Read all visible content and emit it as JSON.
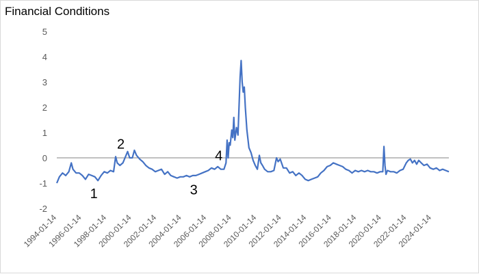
{
  "chart_data": {
    "type": "line",
    "title": "Financial Conditions",
    "xlabel": "",
    "ylabel": "",
    "ylim": [
      -2,
      5
    ],
    "y_ticks": [
      "5",
      "4",
      "3",
      "2",
      "1",
      "0",
      "-1",
      "-2"
    ],
    "x_tick_labels": [
      "1994-01-14",
      "1996-01-14",
      "1998-01-14",
      "2000-01-14",
      "2002-01-14",
      "2004-01-14",
      "2006-01-14",
      "2008-01-14",
      "2010-01-14",
      "2012-01-14",
      "2014-01-14",
      "2016-01-14",
      "2018-01-14",
      "2020-01-14",
      "2022-01-14",
      "2024-01-14"
    ],
    "series": [
      {
        "color": "#4472C4",
        "points": [
          [
            "1994-01-14",
            -1.0
          ],
          [
            "1994-04-01",
            -0.75
          ],
          [
            "1994-07-01",
            -0.6
          ],
          [
            "1994-10-01",
            -0.7
          ],
          [
            "1995-01-01",
            -0.55
          ],
          [
            "1995-03-15",
            -0.2
          ],
          [
            "1995-05-01",
            -0.45
          ],
          [
            "1995-08-01",
            -0.6
          ],
          [
            "1995-11-01",
            -0.6
          ],
          [
            "1996-02-01",
            -0.7
          ],
          [
            "1996-05-01",
            -0.85
          ],
          [
            "1996-08-01",
            -0.65
          ],
          [
            "1996-11-01",
            -0.7
          ],
          [
            "1997-02-01",
            -0.75
          ],
          [
            "1997-05-01",
            -0.9
          ],
          [
            "1997-08-01",
            -0.7
          ],
          [
            "1997-11-01",
            -0.55
          ],
          [
            "1998-02-01",
            -0.6
          ],
          [
            "1998-05-01",
            -0.5
          ],
          [
            "1998-08-01",
            -0.55
          ],
          [
            "1998-10-01",
            0.05
          ],
          [
            "1998-11-15",
            -0.2
          ],
          [
            "1999-02-01",
            -0.3
          ],
          [
            "1999-05-01",
            -0.2
          ],
          [
            "1999-08-01",
            0.1
          ],
          [
            "1999-09-15",
            0.25
          ],
          [
            "1999-11-15",
            0.0
          ],
          [
            "2000-02-01",
            0.0
          ],
          [
            "2000-04-01",
            0.3
          ],
          [
            "2000-06-01",
            0.1
          ],
          [
            "2000-09-01",
            -0.05
          ],
          [
            "2000-12-01",
            -0.15
          ],
          [
            "2001-03-01",
            -0.3
          ],
          [
            "2001-06-01",
            -0.4
          ],
          [
            "2001-09-01",
            -0.45
          ],
          [
            "2001-12-01",
            -0.55
          ],
          [
            "2002-03-01",
            -0.5
          ],
          [
            "2002-06-01",
            -0.45
          ],
          [
            "2002-09-01",
            -0.65
          ],
          [
            "2002-12-01",
            -0.55
          ],
          [
            "2003-03-01",
            -0.7
          ],
          [
            "2003-06-01",
            -0.75
          ],
          [
            "2003-09-01",
            -0.8
          ],
          [
            "2003-12-01",
            -0.75
          ],
          [
            "2004-03-01",
            -0.75
          ],
          [
            "2004-06-01",
            -0.7
          ],
          [
            "2004-09-01",
            -0.75
          ],
          [
            "2004-12-01",
            -0.7
          ],
          [
            "2005-03-01",
            -0.7
          ],
          [
            "2005-06-01",
            -0.65
          ],
          [
            "2005-09-01",
            -0.6
          ],
          [
            "2005-12-01",
            -0.55
          ],
          [
            "2006-03-01",
            -0.5
          ],
          [
            "2006-06-01",
            -0.4
          ],
          [
            "2006-09-01",
            -0.45
          ],
          [
            "2006-12-01",
            -0.35
          ],
          [
            "2007-03-01",
            -0.45
          ],
          [
            "2007-06-01",
            -0.45
          ],
          [
            "2007-08-01",
            -0.2
          ],
          [
            "2007-09-01",
            0.7
          ],
          [
            "2007-10-01",
            0.0
          ],
          [
            "2007-11-01",
            0.6
          ],
          [
            "2007-12-01",
            0.5
          ],
          [
            "2008-01-15",
            1.1
          ],
          [
            "2008-02-15",
            0.8
          ],
          [
            "2008-03-15",
            1.6
          ],
          [
            "2008-04-15",
            0.7
          ],
          [
            "2008-06-01",
            1.2
          ],
          [
            "2008-07-15",
            0.9
          ],
          [
            "2008-09-15",
            3.2
          ],
          [
            "2008-10-15",
            3.85
          ],
          [
            "2008-11-15",
            3.0
          ],
          [
            "2008-12-15",
            2.6
          ],
          [
            "2009-01-15",
            2.8
          ],
          [
            "2009-02-15",
            2.0
          ],
          [
            "2009-04-01",
            1.1
          ],
          [
            "2009-06-01",
            0.4
          ],
          [
            "2009-08-01",
            0.2
          ],
          [
            "2009-10-01",
            -0.1
          ],
          [
            "2009-12-01",
            -0.3
          ],
          [
            "2010-02-01",
            -0.45
          ],
          [
            "2010-04-01",
            0.1
          ],
          [
            "2010-05-15",
            -0.2
          ],
          [
            "2010-07-01",
            -0.3
          ],
          [
            "2010-09-01",
            -0.45
          ],
          [
            "2010-12-01",
            -0.55
          ],
          [
            "2011-03-01",
            -0.55
          ],
          [
            "2011-06-01",
            -0.5
          ],
          [
            "2011-08-15",
            0.0
          ],
          [
            "2011-10-01",
            -0.15
          ],
          [
            "2011-12-01",
            -0.05
          ],
          [
            "2012-03-01",
            -0.4
          ],
          [
            "2012-06-01",
            -0.4
          ],
          [
            "2012-09-01",
            -0.6
          ],
          [
            "2012-12-01",
            -0.55
          ],
          [
            "2013-03-01",
            -0.7
          ],
          [
            "2013-06-01",
            -0.6
          ],
          [
            "2013-09-01",
            -0.7
          ],
          [
            "2013-12-01",
            -0.85
          ],
          [
            "2014-03-01",
            -0.9
          ],
          [
            "2014-06-01",
            -0.85
          ],
          [
            "2014-09-01",
            -0.8
          ],
          [
            "2014-12-01",
            -0.75
          ],
          [
            "2015-03-01",
            -0.6
          ],
          [
            "2015-06-01",
            -0.5
          ],
          [
            "2015-09-01",
            -0.35
          ],
          [
            "2015-12-01",
            -0.3
          ],
          [
            "2016-03-01",
            -0.2
          ],
          [
            "2016-06-01",
            -0.25
          ],
          [
            "2016-09-01",
            -0.3
          ],
          [
            "2016-12-01",
            -0.35
          ],
          [
            "2017-03-01",
            -0.45
          ],
          [
            "2017-06-01",
            -0.5
          ],
          [
            "2017-09-01",
            -0.6
          ],
          [
            "2017-12-01",
            -0.5
          ],
          [
            "2018-03-01",
            -0.55
          ],
          [
            "2018-06-01",
            -0.5
          ],
          [
            "2018-09-01",
            -0.55
          ],
          [
            "2018-12-01",
            -0.5
          ],
          [
            "2019-03-01",
            -0.55
          ],
          [
            "2019-06-01",
            -0.55
          ],
          [
            "2019-09-01",
            -0.6
          ],
          [
            "2019-12-01",
            -0.55
          ],
          [
            "2020-02-15",
            -0.55
          ],
          [
            "2020-03-20",
            0.45
          ],
          [
            "2020-04-20",
            -0.3
          ],
          [
            "2020-05-20",
            -0.65
          ],
          [
            "2020-07-01",
            -0.5
          ],
          [
            "2020-10-01",
            -0.55
          ],
          [
            "2021-01-01",
            -0.55
          ],
          [
            "2021-04-01",
            -0.6
          ],
          [
            "2021-07-01",
            -0.5
          ],
          [
            "2021-10-01",
            -0.45
          ],
          [
            "2022-01-01",
            -0.2
          ],
          [
            "2022-03-01",
            -0.1
          ],
          [
            "2022-05-01",
            -0.05
          ],
          [
            "2022-07-01",
            -0.2
          ],
          [
            "2022-09-01",
            -0.1
          ],
          [
            "2022-11-01",
            -0.25
          ],
          [
            "2023-01-01",
            -0.1
          ],
          [
            "2023-03-15",
            -0.2
          ],
          [
            "2023-06-01",
            -0.3
          ],
          [
            "2023-09-01",
            -0.25
          ],
          [
            "2023-12-01",
            -0.4
          ],
          [
            "2024-03-01",
            -0.45
          ],
          [
            "2024-06-01",
            -0.4
          ],
          [
            "2024-09-01",
            -0.5
          ],
          [
            "2024-12-01",
            -0.45
          ],
          [
            "2025-03-01",
            -0.5
          ],
          [
            "2025-06-01",
            -0.55
          ]
        ]
      }
    ],
    "annotations": [
      {
        "label": "1",
        "date": "1997-01-01",
        "value": -1.4
      },
      {
        "label": "2",
        "date": "1999-03-01",
        "value": 0.55
      },
      {
        "label": "3",
        "date": "2005-01-01",
        "value": -1.25
      },
      {
        "label": "4",
        "date": "2007-01-01",
        "value": 0.1
      }
    ],
    "grid": false
  }
}
